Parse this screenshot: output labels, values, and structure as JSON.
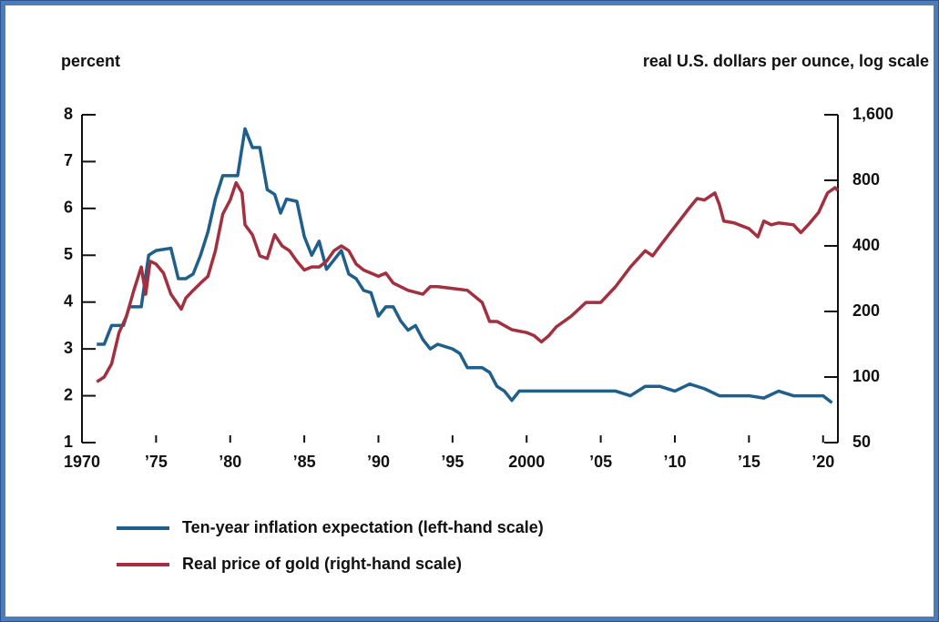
{
  "chart_data": {
    "type": "line",
    "y_label": "percent",
    "y2_label": "real U.S. dollars per ounce, log scale",
    "xlim": [
      1970,
      2021
    ],
    "xticks": [
      1970,
      {
        "value": 1975,
        "label": "’75"
      },
      {
        "value": 1980,
        "label": "’80"
      },
      {
        "value": 1985,
        "label": "’85"
      },
      {
        "value": 1990,
        "label": "’90"
      },
      {
        "value": 1995,
        "label": "’95"
      },
      2000,
      {
        "value": 2005,
        "label": "’05"
      },
      {
        "value": 2010,
        "label": "’10"
      },
      {
        "value": 2015,
        "label": "’15"
      },
      {
        "value": 2020,
        "label": "’20"
      }
    ],
    "ylim": [
      1,
      8
    ],
    "yticks": [
      1,
      2,
      3,
      4,
      5,
      6,
      7,
      8
    ],
    "y2lim": [
      50,
      1600
    ],
    "y2log": true,
    "y2ticks": [
      50,
      100,
      200,
      400,
      800,
      {
        "value": 1600,
        "label": "1,600"
      }
    ],
    "series": [
      {
        "name": "Ten-year inflation expectation (left-hand scale)",
        "color": "#1f5f8b",
        "axis": "y",
        "x": [
          1971,
          1971.5,
          1972,
          1972.8,
          1973.2,
          1974,
          1974.5,
          1975,
          1976,
          1976.5,
          1977,
          1977.5,
          1978,
          1978.5,
          1979,
          1979.5,
          1980,
          1980.5,
          1981,
          1981.5,
          1982,
          1982.5,
          1983,
          1983.4,
          1983.8,
          1984.5,
          1985,
          1985.5,
          1986,
          1986.5,
          1987,
          1987.5,
          1988,
          1988.5,
          1989,
          1989.5,
          1990,
          1990.5,
          1991,
          1991.5,
          1992,
          1992.5,
          1993,
          1993.5,
          1994,
          1995,
          1995.5,
          1996,
          1997,
          1997.5,
          1998,
          1998.5,
          1999,
          1999.5,
          2001,
          2002,
          2003,
          2004,
          2005,
          2006,
          2007,
          2008,
          2009,
          2010,
          2011,
          2012,
          2013,
          2014,
          2015,
          2016,
          2017,
          2018,
          2019,
          2020,
          2020.6
        ],
        "values": [
          3.1,
          3.1,
          3.5,
          3.5,
          3.9,
          3.9,
          5.0,
          5.1,
          5.15,
          4.5,
          4.5,
          4.6,
          5.0,
          5.5,
          6.2,
          6.7,
          6.7,
          6.7,
          7.7,
          7.3,
          7.3,
          6.4,
          6.3,
          5.9,
          6.2,
          6.15,
          5.4,
          5.0,
          5.3,
          4.7,
          4.9,
          5.1,
          4.6,
          4.5,
          4.25,
          4.2,
          3.7,
          3.9,
          3.9,
          3.6,
          3.4,
          3.5,
          3.2,
          3.0,
          3.1,
          3.0,
          2.9,
          2.6,
          2.6,
          2.5,
          2.2,
          2.1,
          1.9,
          2.1,
          2.1,
          2.1,
          2.1,
          2.1,
          2.1,
          2.1,
          2.0,
          2.2,
          2.2,
          2.1,
          2.25,
          2.15,
          2.0,
          2.0,
          2.0,
          1.95,
          2.1,
          2.0,
          2.0,
          2.0,
          1.85
        ]
      },
      {
        "name": "Real price of gold (right-hand scale)",
        "color": "#a3303f",
        "axis": "y2",
        "x": [
          1971,
          1971.5,
          1972,
          1972.5,
          1973,
          1973.5,
          1974,
          1974.3,
          1974.6,
          1975,
          1975.5,
          1976,
          1976.7,
          1977,
          1977.5,
          1978,
          1978.5,
          1979,
          1979.5,
          1980,
          1980.4,
          1980.8,
          1981,
          1981.5,
          1982,
          1982.5,
          1983,
          1983.5,
          1984,
          1984.5,
          1985,
          1985.5,
          1986,
          1986.5,
          1987,
          1987.5,
          1988,
          1988.5,
          1989,
          1990,
          1990.5,
          1991,
          1992,
          1993,
          1993.5,
          1994,
          1995,
          1996,
          1997,
          1997.5,
          1998,
          1999,
          2000,
          2000.5,
          2001,
          2001.5,
          2002,
          2003,
          2004,
          2005,
          2006,
          2007,
          2008,
          2008.5,
          2009,
          2010,
          2011,
          2011.5,
          2012,
          2012.7,
          2013,
          2013.3,
          2014,
          2015,
          2015.6,
          2016,
          2016.5,
          2017,
          2018,
          2018.5,
          2019,
          2019.7,
          2020.3,
          2020.8,
          2021
        ],
        "values": [
          95,
          100,
          115,
          160,
          190,
          250,
          320,
          240,
          340,
          330,
          300,
          240,
          205,
          230,
          250,
          270,
          290,
          380,
          560,
          650,
          780,
          700,
          500,
          450,
          360,
          350,
          450,
          400,
          380,
          340,
          310,
          320,
          320,
          340,
          380,
          400,
          380,
          330,
          310,
          290,
          300,
          270,
          250,
          240,
          260,
          260,
          255,
          250,
          220,
          180,
          180,
          165,
          160,
          155,
          145,
          155,
          170,
          190,
          220,
          220,
          260,
          320,
          380,
          360,
          400,
          490,
          600,
          660,
          650,
          700,
          620,
          520,
          510,
          480,
          440,
          520,
          500,
          510,
          500,
          460,
          500,
          570,
          700,
          740,
          720
        ]
      }
    ]
  }
}
